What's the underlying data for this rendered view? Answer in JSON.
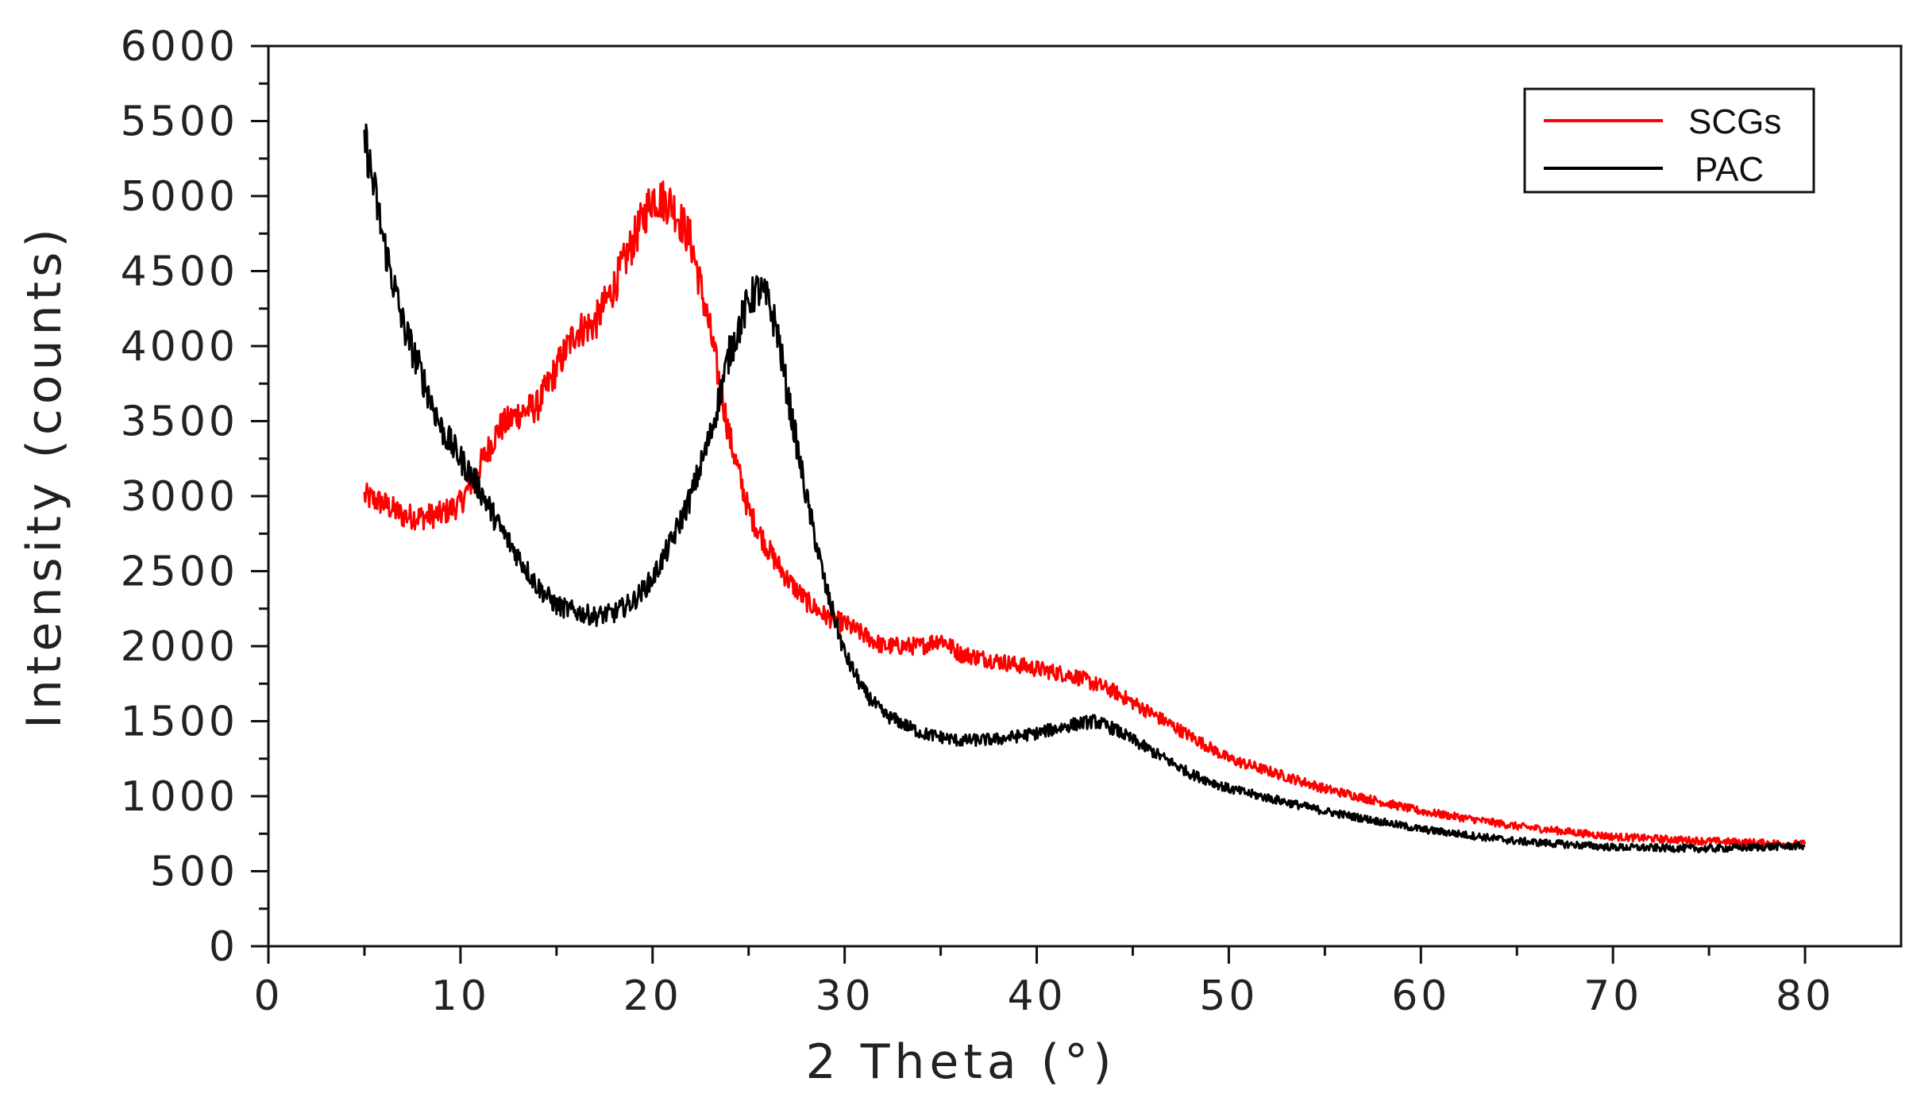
{
  "chart_data": {
    "type": "line",
    "title": "",
    "xlabel": "2 Theta (°)",
    "ylabel": "Intensity (counts)",
    "xlim": [
      0,
      85
    ],
    "ylim": [
      0,
      6000
    ],
    "x_ticks": [
      0,
      10,
      20,
      30,
      40,
      50,
      60,
      70,
      80
    ],
    "y_ticks": [
      0,
      500,
      1000,
      1500,
      2000,
      2500,
      3000,
      3500,
      4000,
      4500,
      5000,
      5500,
      6000
    ],
    "grid": false,
    "legend_position": "top-right",
    "series": [
      {
        "name": "SCGs",
        "color": "#ff0000",
        "x": [
          5,
          6,
          7,
          8,
          9,
          10,
          11,
          12,
          13,
          14,
          15,
          16,
          17,
          18,
          19,
          20,
          21,
          22,
          23,
          24,
          25,
          26,
          27,
          28,
          29,
          30,
          32,
          34,
          35,
          36,
          38,
          40,
          42,
          44,
          46,
          48,
          50,
          55,
          60,
          65,
          70,
          75,
          80
        ],
        "y": [
          3000,
          2950,
          2870,
          2860,
          2880,
          2950,
          3200,
          3450,
          3550,
          3600,
          3850,
          4100,
          4150,
          4400,
          4700,
          5000,
          4950,
          4700,
          4100,
          3400,
          2900,
          2650,
          2450,
          2300,
          2200,
          2150,
          2000,
          2000,
          2050,
          1950,
          1900,
          1850,
          1800,
          1700,
          1550,
          1400,
          1250,
          1050,
          900,
          800,
          730,
          700,
          680
        ]
      },
      {
        "name": "PAC",
        "color": "#000000",
        "x": [
          5,
          6,
          7,
          8,
          9,
          10,
          11,
          12,
          13,
          14,
          15,
          16,
          17,
          18,
          19,
          20,
          21,
          22,
          23,
          24,
          25,
          25.5,
          26,
          26.5,
          27,
          28,
          29,
          30,
          31,
          32,
          34,
          36,
          38,
          40,
          42,
          43,
          44,
          46,
          48,
          50,
          55,
          60,
          65,
          70,
          75,
          80
        ],
        "y": [
          5400,
          4700,
          4150,
          3800,
          3450,
          3250,
          3050,
          2800,
          2600,
          2400,
          2270,
          2230,
          2200,
          2220,
          2300,
          2450,
          2700,
          3000,
          3400,
          3950,
          4300,
          4380,
          4300,
          4100,
          3700,
          3000,
          2400,
          1950,
          1700,
          1550,
          1420,
          1370,
          1380,
          1420,
          1480,
          1500,
          1450,
          1300,
          1150,
          1050,
          900,
          780,
          700,
          660,
          650,
          670
        ]
      }
    ]
  }
}
